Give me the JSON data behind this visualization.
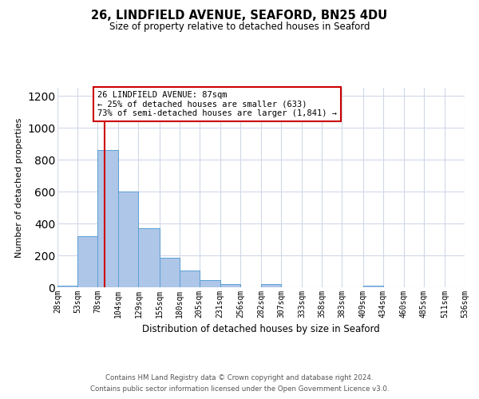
{
  "title": "26, LINDFIELD AVENUE, SEAFORD, BN25 4DU",
  "subtitle": "Size of property relative to detached houses in Seaford",
  "xlabel": "Distribution of detached houses by size in Seaford",
  "ylabel": "Number of detached properties",
  "bar_color": "#aec6e8",
  "bar_edge_color": "#5a9fd4",
  "background_color": "#ffffff",
  "grid_color": "#d0d8e8",
  "bin_edges": [
    28,
    53,
    78,
    104,
    129,
    155,
    180,
    205,
    231,
    256,
    282,
    307,
    333,
    358,
    383,
    409,
    434,
    460,
    485,
    511,
    536
  ],
  "bin_labels": [
    "28sqm",
    "53sqm",
    "78sqm",
    "104sqm",
    "129sqm",
    "155sqm",
    "180sqm",
    "205sqm",
    "231sqm",
    "256sqm",
    "282sqm",
    "307sqm",
    "333sqm",
    "358sqm",
    "383sqm",
    "409sqm",
    "434sqm",
    "460sqm",
    "485sqm",
    "511sqm",
    "536sqm"
  ],
  "counts": [
    10,
    320,
    860,
    600,
    370,
    185,
    105,
    47,
    22,
    0,
    20,
    0,
    0,
    0,
    0,
    10,
    0,
    0,
    0,
    0
  ],
  "ylim": [
    0,
    1250
  ],
  "yticks": [
    0,
    200,
    400,
    600,
    800,
    1000,
    1200
  ],
  "property_line_x": 87,
  "property_line_color": "#cc0000",
  "annotation_line1": "26 LINDFIELD AVENUE: 87sqm",
  "annotation_line2": "← 25% of detached houses are smaller (633)",
  "annotation_line3": "73% of semi-detached houses are larger (1,841) →",
  "annotation_box_color": "#cc0000",
  "footnote1": "Contains HM Land Registry data © Crown copyright and database right 2024.",
  "footnote2": "Contains public sector information licensed under the Open Government Licence v3.0."
}
